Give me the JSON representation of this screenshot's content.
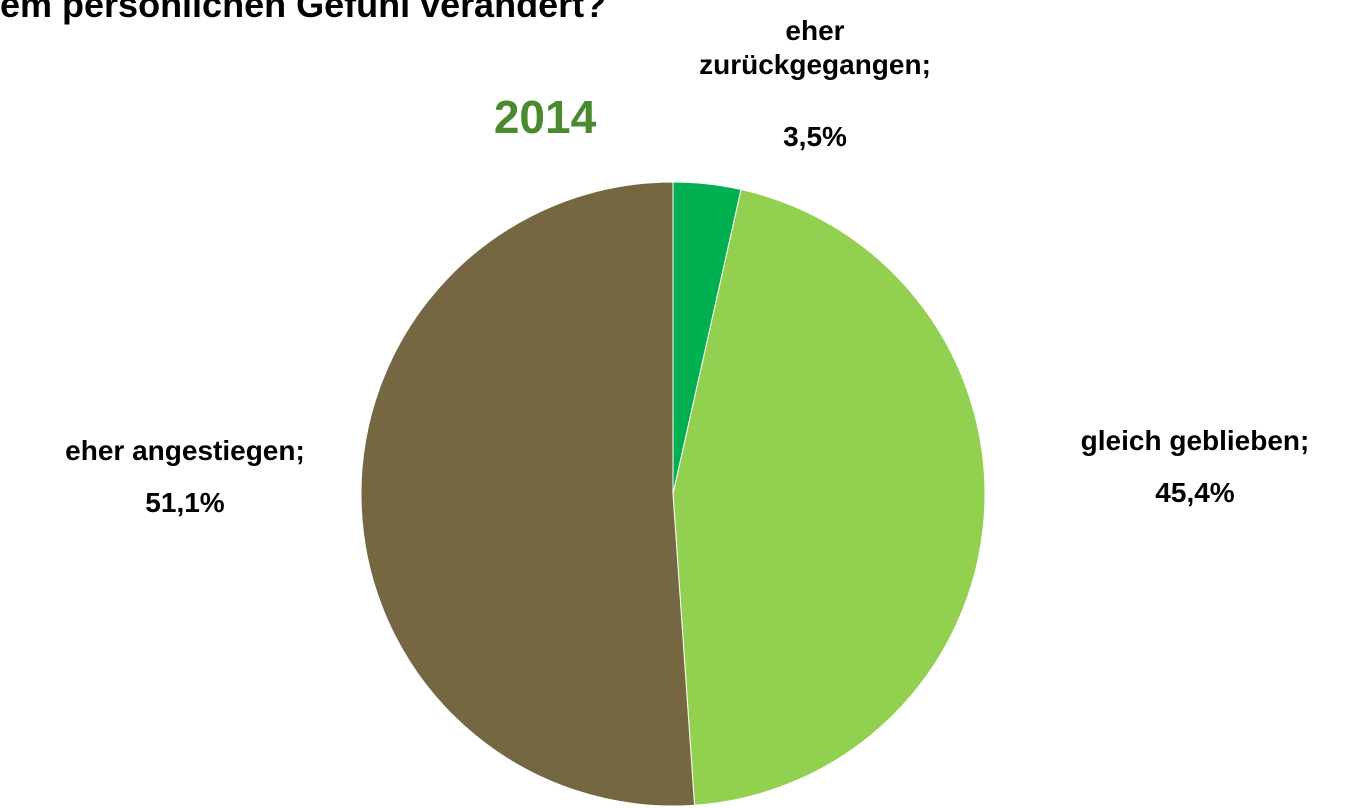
{
  "chart_data": {
    "type": "pie",
    "title": "em persönlichen Gefühl verändert?",
    "subtitle": "2014",
    "categories": [
      "eher zurückgegangen;",
      "gleich geblieben;",
      "eher angestiegen;"
    ],
    "values": [
      3.5,
      45.4,
      51.1
    ],
    "value_labels": [
      "3,5%",
      "45,4%",
      "51,1%"
    ],
    "colors": [
      "#00b050",
      "#92d050",
      "#746741"
    ]
  }
}
